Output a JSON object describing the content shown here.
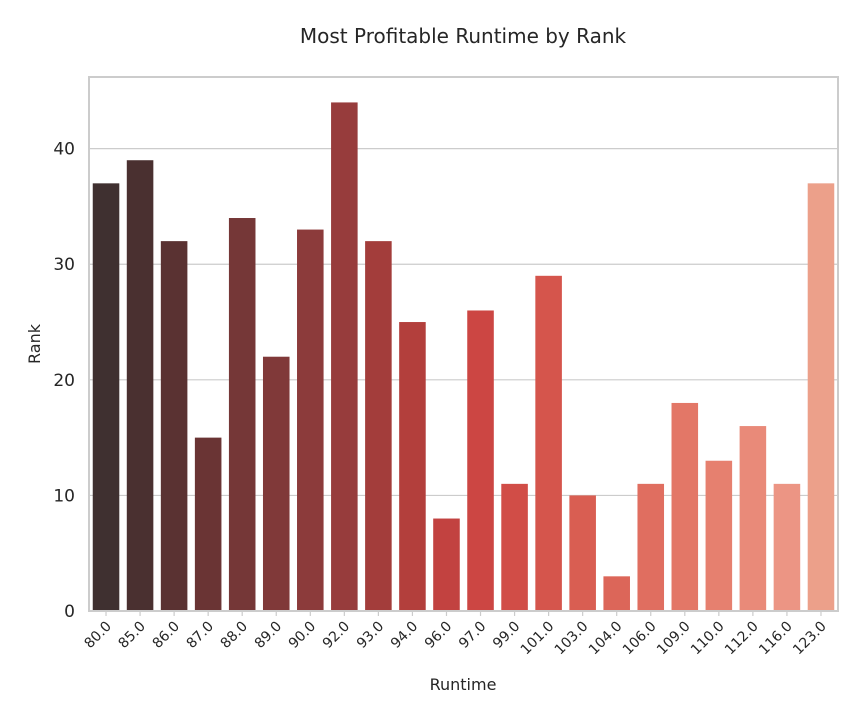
{
  "chart_data": {
    "type": "bar",
    "title": "Most Profitable Runtime by Rank",
    "xlabel": "Runtime",
    "ylabel": "Rank",
    "categories": [
      "80.0",
      "85.0",
      "86.0",
      "87.0",
      "88.0",
      "89.0",
      "90.0",
      "92.0",
      "93.0",
      "94.0",
      "96.0",
      "97.0",
      "99.0",
      "101.0",
      "103.0",
      "104.0",
      "106.0",
      "109.0",
      "110.0",
      "112.0",
      "116.0",
      "123.0"
    ],
    "values": [
      37,
      39,
      32,
      15,
      34,
      22,
      33,
      44,
      32,
      25,
      8,
      26,
      11,
      29,
      10,
      3,
      11,
      18,
      13,
      16,
      11,
      37
    ],
    "ylim": [
      0,
      46.2
    ],
    "yticks": [
      0,
      10,
      20,
      30,
      40
    ],
    "grid": true,
    "colors": [
      "#3f3030",
      "#4a3030",
      "#5a3232",
      "#6a3434",
      "#753737",
      "#803939",
      "#8c3b3b",
      "#973c3c",
      "#a33d3b",
      "#b33f3c",
      "#c24240",
      "#cc4643",
      "#d14d47",
      "#d5554c",
      "#d95e52",
      "#dc6659",
      "#e06e60",
      "#e37767",
      "#e6806f",
      "#e98a79",
      "#ec9584",
      "#eca08a"
    ]
  }
}
